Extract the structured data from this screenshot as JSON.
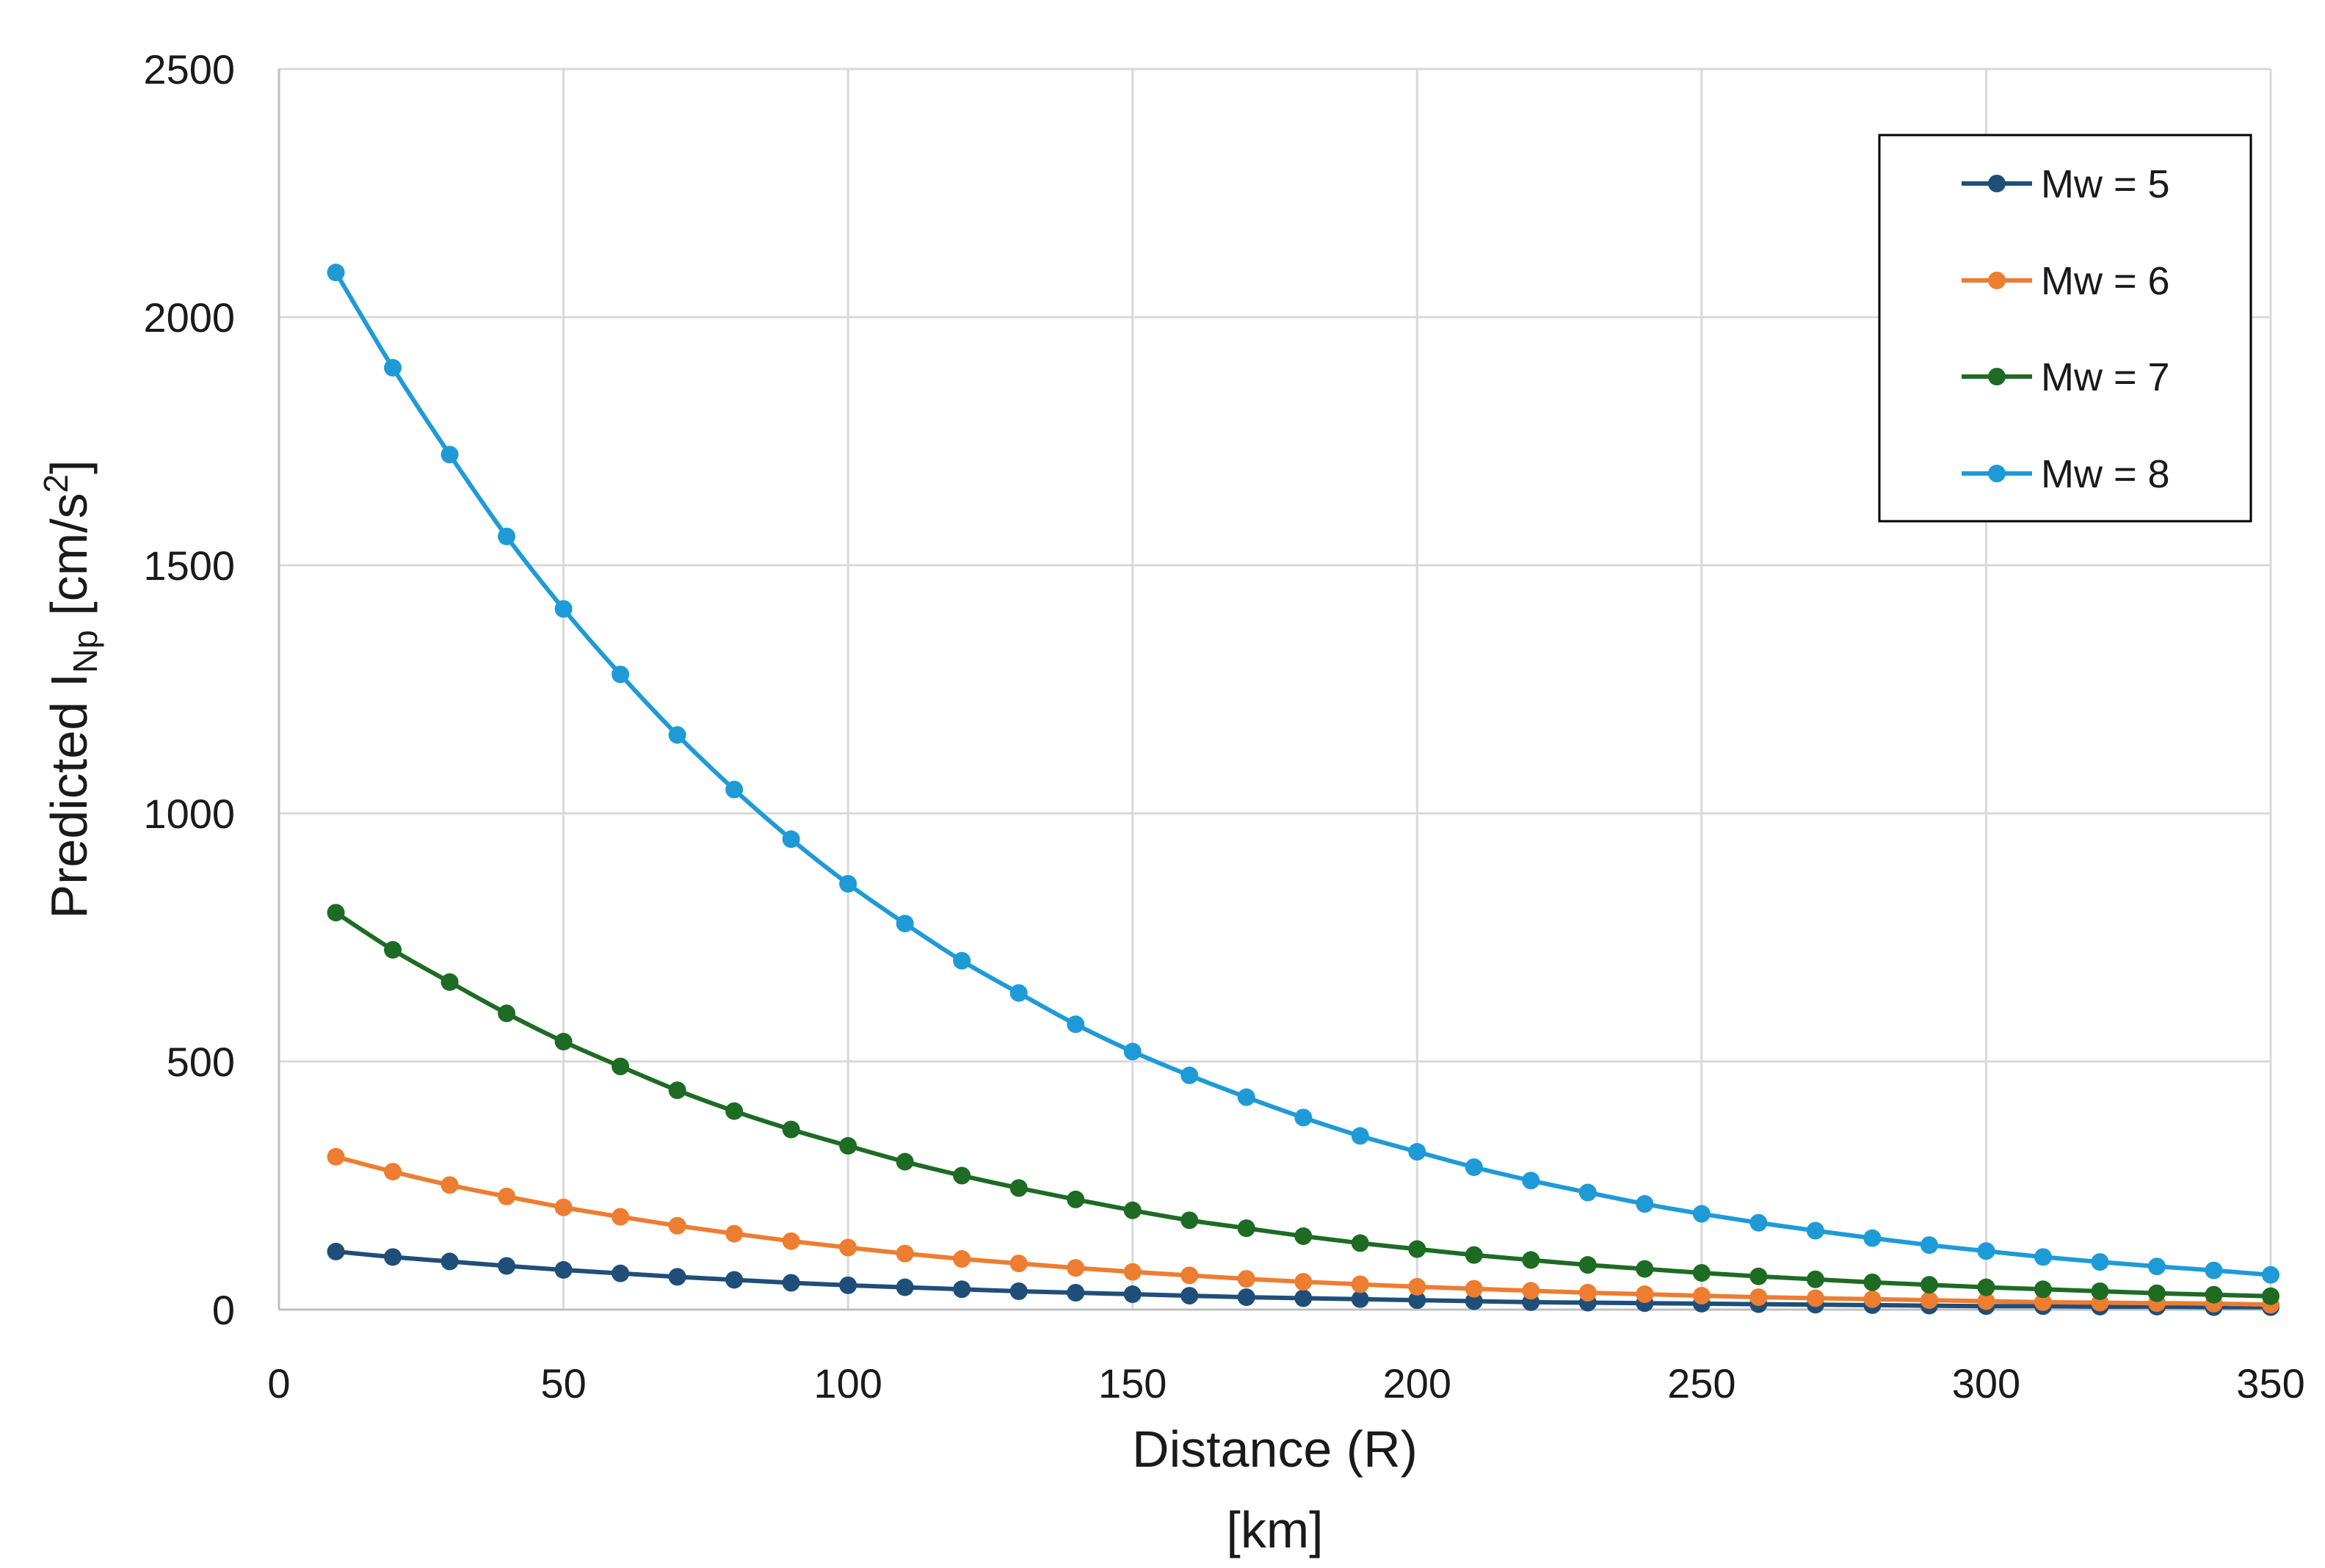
{
  "chart_data": {
    "type": "line",
    "title": "",
    "xlabel": "Distance (R)",
    "xlabel_unit": "[km]",
    "ylabel": {
      "prefix": "Predicted I",
      "subscript": "Np",
      "unit_open": " [cm/s",
      "superscript": "2",
      "unit_close": "]"
    },
    "xlim": [
      0,
      350
    ],
    "ylim": [
      0,
      2500
    ],
    "x_ticks": [
      "0",
      "50",
      "100",
      "150",
      "200",
      "250",
      "300",
      "350"
    ],
    "y_ticks": [
      "0",
      "500",
      "1000",
      "1500",
      "2000",
      "2500"
    ],
    "grid": true,
    "legend_position": "top-right",
    "x": [
      10,
      20,
      30,
      40,
      50,
      60,
      70,
      80,
      90,
      100,
      110,
      120,
      130,
      140,
      150,
      160,
      170,
      180,
      190,
      200,
      210,
      220,
      230,
      240,
      250,
      260,
      270,
      280,
      290,
      300,
      310,
      320,
      330,
      340,
      350
    ],
    "series": [
      {
        "name": "Mw = 5",
        "color": "#1f4e79",
        "values": [
          117,
          106,
          97,
          88,
          80,
          73,
          66,
          60,
          54,
          49,
          45,
          41,
          37,
          34,
          31,
          28,
          25,
          23,
          21,
          19,
          17,
          15,
          14,
          13,
          12,
          11,
          10,
          9,
          8,
          7,
          7,
          6,
          6,
          5,
          5
        ]
      },
      {
        "name": "Mw = 6",
        "color": "#ed7d31",
        "values": [
          308,
          278,
          251,
          228,
          206,
          187,
          169,
          153,
          138,
          125,
          113,
          102,
          93,
          84,
          76,
          69,
          62,
          56,
          51,
          46,
          42,
          38,
          34,
          31,
          28,
          25,
          23,
          21,
          19,
          17,
          15,
          14,
          13,
          12,
          10
        ]
      },
      {
        "name": "Mw = 7",
        "color": "#1e6b24",
        "values": [
          800,
          725,
          660,
          597,
          540,
          490,
          442,
          400,
          363,
          330,
          298,
          270,
          245,
          222,
          200,
          180,
          164,
          148,
          134,
          122,
          110,
          100,
          90,
          82,
          74,
          67,
          61,
          55,
          50,
          45,
          41,
          37,
          33,
          30,
          27
        ]
      },
      {
        "name": "Mw = 8",
        "color": "#1e9bd7",
        "values": [
          2090,
          1898,
          1723,
          1558,
          1412,
          1280,
          1158,
          1048,
          948,
          858,
          778,
          703,
          638,
          575,
          520,
          472,
          428,
          387,
          350,
          318,
          287,
          260,
          236,
          213,
          193,
          175,
          159,
          144,
          130,
          118,
          106,
          96,
          87,
          79,
          70
        ]
      }
    ]
  }
}
